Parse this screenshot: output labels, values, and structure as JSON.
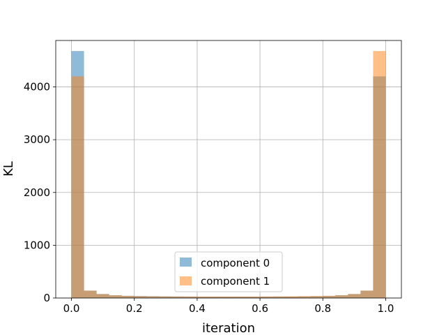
{
  "chart_data": {
    "type": "histogram",
    "xlabel": "iteration",
    "ylabel": "KL",
    "xlim": [
      -0.05,
      1.05
    ],
    "ylim": [
      0,
      4880
    ],
    "xticks": [
      0.0,
      0.2,
      0.4,
      0.6,
      0.8,
      1.0
    ],
    "xtick_labels": [
      "0.0",
      "0.2",
      "0.4",
      "0.6",
      "0.8",
      "1.0"
    ],
    "yticks": [
      0,
      1000,
      2000,
      3000,
      4000
    ],
    "ytick_labels": [
      "0",
      "1000",
      "2000",
      "3000",
      "4000"
    ],
    "grid": true,
    "bins": 25,
    "bin_range": [
      0.0,
      1.0
    ],
    "series": [
      {
        "name": "component 0",
        "color": "#1f77b4",
        "alpha": 0.5,
        "values": [
          4680,
          140,
          75,
          52,
          42,
          38,
          35,
          32,
          30,
          28,
          27,
          27,
          27,
          27,
          27,
          28,
          29,
          29,
          32,
          35,
          40,
          52,
          75,
          140,
          4200
        ]
      },
      {
        "name": "component 1",
        "color": "#ff7f0e",
        "alpha": 0.5,
        "values": [
          4200,
          140,
          75,
          52,
          40,
          35,
          32,
          29,
          29,
          28,
          27,
          27,
          27,
          27,
          27,
          28,
          30,
          32,
          35,
          38,
          42,
          52,
          75,
          140,
          4680
        ]
      }
    ],
    "legend": {
      "position": "lower-center",
      "entries": [
        "component 0",
        "component 1"
      ]
    }
  }
}
